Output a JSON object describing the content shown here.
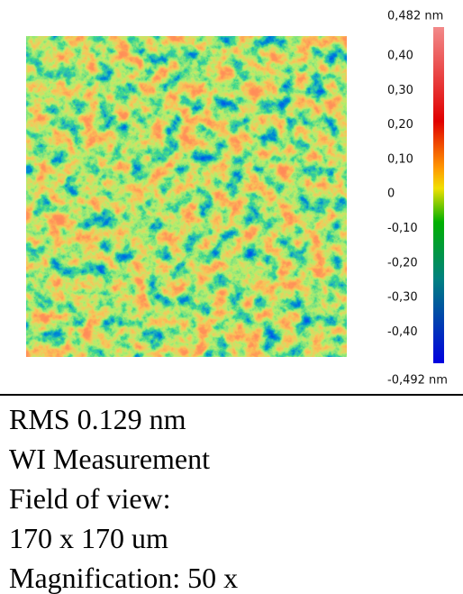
{
  "colorbar": {
    "max_label": "0,482 nm",
    "min_label": "-0,492 nm",
    "tick_labels": [
      "0,40",
      "0,30",
      "0,20",
      "0,10",
      "0",
      "-0,10",
      "-0,20",
      "-0,30",
      "-0,40"
    ]
  },
  "caption": {
    "lines": [
      "RMS 0.129 nm",
      "WI Measurement",
      "Field of view:",
      "170 x 170 um",
      "Magnification: 50 x"
    ]
  }
}
